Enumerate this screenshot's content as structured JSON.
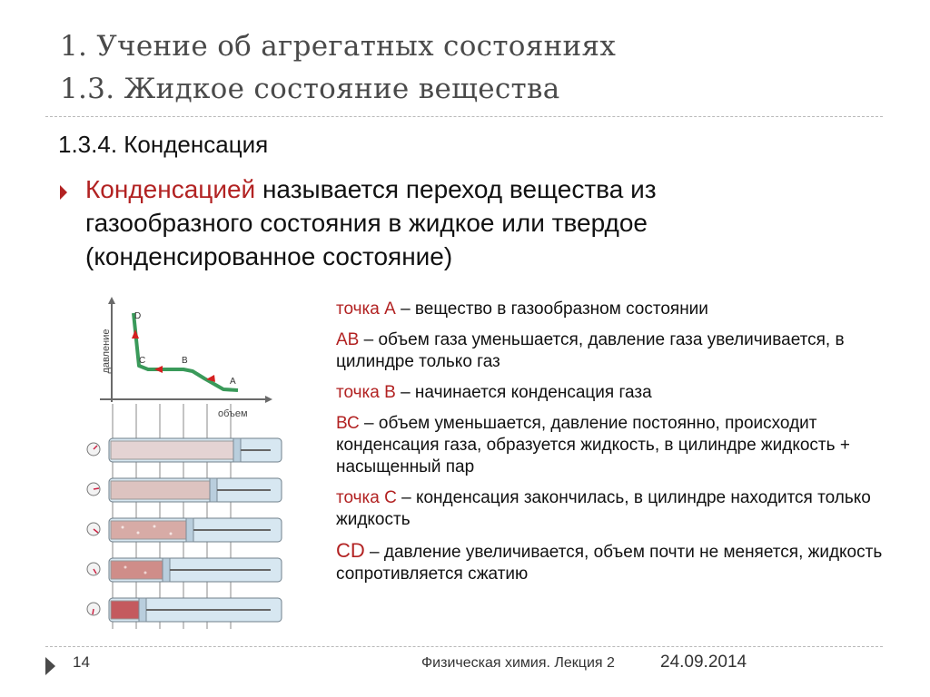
{
  "slide": {
    "title_line1": "1. Учение об агрегатных состояниях",
    "title_line2": "1.3. Жидкое состояние вещества",
    "subheading": "1.3.4. Конденсация",
    "definition": {
      "term": "Конденсацией",
      "text": " называется переход вещества из газообразного состояния в жидкое или твердое (конденсированное состояние)"
    }
  },
  "figure": {
    "axis_y_label": "давление",
    "axis_x_label": "объем",
    "point_labels": [
      "D",
      "C",
      "B",
      "A"
    ],
    "line_color": "#3a9a5a",
    "arrow_color": "#d42020",
    "cylinder_count": 5
  },
  "explanations": [
    {
      "term": "точка А",
      "text": " – вещество в газообразном состоянии"
    },
    {
      "term": "АВ",
      "text": " – объем газа уменьшается, давление газа увеличивается,  в цилиндре только газ"
    },
    {
      "term": "точка В",
      "text": " – начинается конденсация газа"
    },
    {
      "term": "ВС",
      "text": " – объем уменьшается, давление постоянно, происходит конденсация газа, образуется жидкость, в цилиндре жидкость + насыщенный пар"
    },
    {
      "term": "точка С",
      "text": " – конденсация закончилась, в цилиндре находится только жидкость"
    },
    {
      "term": "CD",
      "text": " – давление увеличивается, объем почти не меняется, жидкость сопротивляется сжатию"
    }
  ],
  "footer": {
    "slide_number": "14",
    "course_title": "Физическая химия. Лекция 2",
    "date": "24.09.2014"
  },
  "colors": {
    "accent": "#b22222",
    "title_gray": "#4a4a4a"
  }
}
